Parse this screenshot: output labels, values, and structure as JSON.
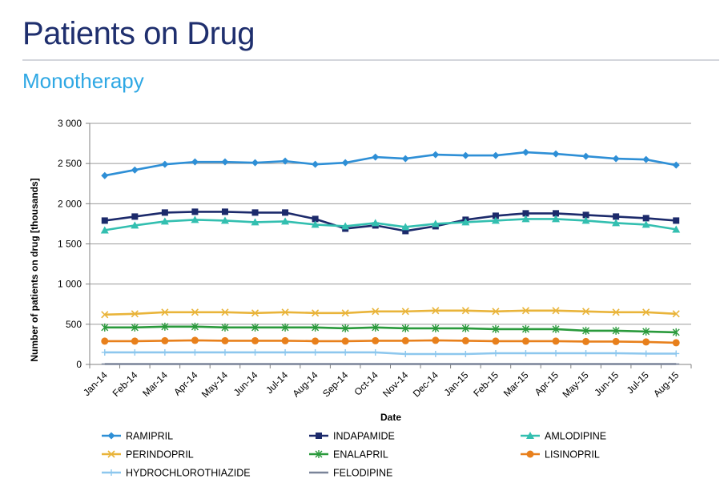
{
  "header": {
    "title": "Patients on Drug",
    "subtitle": "Monotherapy"
  },
  "chart_data": {
    "type": "line",
    "title": "",
    "xlabel": "Date",
    "ylabel": "Number of patients on drug [thousands]",
    "ylim": [
      0,
      3000
    ],
    "y_ticks": [
      0,
      500,
      1000,
      1500,
      2000,
      2500,
      3000
    ],
    "y_tick_labels": [
      "0",
      "500",
      "1 000",
      "1 500",
      "2 000",
      "2 500",
      "3 000"
    ],
    "grid": true,
    "legend_position": "bottom",
    "categories": [
      "Jan-14",
      "Feb-14",
      "Mar-14",
      "Apr-14",
      "May-14",
      "Jun-14",
      "Jul-14",
      "Aug-14",
      "Sep-14",
      "Oct-14",
      "Nov-14",
      "Dec-14",
      "Jan-15",
      "Feb-15",
      "Mar-15",
      "Apr-15",
      "May-15",
      "Jun-15",
      "Jul-15",
      "Aug-15"
    ],
    "series": [
      {
        "name": "RAMIPRIL",
        "color": "#2e8fd6",
        "marker": "diamond",
        "values": [
          2350,
          2420,
          2490,
          2520,
          2520,
          2510,
          2530,
          2490,
          2510,
          2580,
          2560,
          2610,
          2600,
          2600,
          2640,
          2620,
          2590,
          2560,
          2550,
          2480
        ]
      },
      {
        "name": "INDAPAMIDE",
        "color": "#1c2a6b",
        "marker": "square",
        "values": [
          1790,
          1840,
          1890,
          1900,
          1900,
          1890,
          1890,
          1810,
          1690,
          1730,
          1660,
          1720,
          1800,
          1850,
          1880,
          1880,
          1860,
          1840,
          1820,
          1790
        ]
      },
      {
        "name": "AMLODIPINE",
        "color": "#33bfb0",
        "marker": "triangle",
        "values": [
          1670,
          1730,
          1780,
          1800,
          1790,
          1770,
          1780,
          1740,
          1720,
          1760,
          1710,
          1750,
          1770,
          1790,
          1810,
          1810,
          1790,
          1760,
          1740,
          1680
        ]
      },
      {
        "name": "PERINDOPRIL",
        "color": "#e9b43a",
        "marker": "x",
        "values": [
          620,
          630,
          650,
          650,
          650,
          640,
          650,
          640,
          640,
          660,
          660,
          670,
          670,
          660,
          670,
          670,
          660,
          650,
          650,
          630
        ]
      },
      {
        "name": "ENALAPRIL",
        "color": "#2a9a3c",
        "marker": "star",
        "values": [
          460,
          460,
          470,
          470,
          460,
          460,
          460,
          460,
          450,
          460,
          450,
          450,
          450,
          440,
          440,
          440,
          420,
          420,
          410,
          400
        ]
      },
      {
        "name": "LISINOPRIL",
        "color": "#e8801c",
        "marker": "circle",
        "values": [
          290,
          290,
          295,
          300,
          295,
          295,
          295,
          290,
          290,
          295,
          295,
          300,
          295,
          290,
          290,
          290,
          285,
          285,
          280,
          270
        ]
      },
      {
        "name": "HYDROCHLOROTHIAZIDE",
        "color": "#8dc7ee",
        "marker": "plus",
        "values": [
          150,
          150,
          150,
          150,
          150,
          150,
          150,
          150,
          150,
          150,
          130,
          130,
          130,
          140,
          140,
          140,
          140,
          140,
          135,
          135
        ]
      },
      {
        "name": "FELODIPINE",
        "color": "#7a8499",
        "marker": "dash",
        "values": [
          5,
          5,
          5,
          5,
          5,
          5,
          5,
          5,
          5,
          5,
          5,
          5,
          5,
          5,
          5,
          5,
          5,
          5,
          5,
          5
        ]
      }
    ]
  }
}
